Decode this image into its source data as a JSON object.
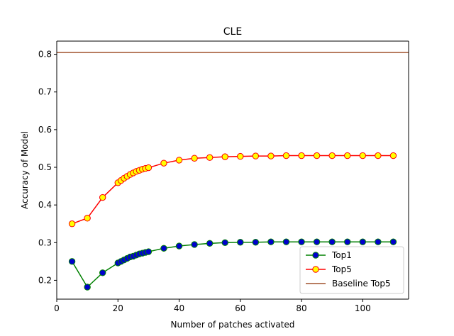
{
  "chart_data": {
    "type": "line",
    "title": "CLE",
    "xlabel": "Number of patches activated",
    "ylabel": "Accuracy of Model",
    "xlim": [
      0,
      115
    ],
    "ylim": [
      0.15,
      0.835
    ],
    "xticks": [
      0,
      20,
      40,
      60,
      80,
      100
    ],
    "yticks": [
      0.2,
      0.3,
      0.4,
      0.5,
      0.6,
      0.7,
      0.8
    ],
    "xtick_labels": [
      "0",
      "20",
      "40",
      "60",
      "80",
      "100"
    ],
    "ytick_labels": [
      "0.2",
      "0.3",
      "0.4",
      "0.5",
      "0.6",
      "0.7",
      "0.8"
    ],
    "grid": false,
    "legend_position": "lower-right",
    "x": [
      5,
      10,
      15,
      20,
      21,
      22,
      23,
      24,
      25,
      26,
      27,
      28,
      29,
      30,
      35,
      40,
      45,
      50,
      55,
      60,
      65,
      70,
      75,
      80,
      85,
      90,
      95,
      100,
      105,
      110
    ],
    "series": [
      {
        "name": "Top1",
        "line_color": "#008000",
        "marker_face": "#0000cc",
        "marker_edge": "#008000",
        "values": [
          0.25,
          0.182,
          0.22,
          0.246,
          0.25,
          0.254,
          0.258,
          0.262,
          0.264,
          0.267,
          0.27,
          0.272,
          0.274,
          0.276,
          0.285,
          0.291,
          0.295,
          0.298,
          0.3,
          0.301,
          0.301,
          0.302,
          0.302,
          0.302,
          0.302,
          0.302,
          0.302,
          0.302,
          0.302,
          0.302
        ]
      },
      {
        "name": "Top5",
        "line_color": "#ff0000",
        "marker_face": "#ffff00",
        "marker_edge": "#ff0000",
        "values": [
          0.35,
          0.365,
          0.42,
          0.459,
          0.465,
          0.471,
          0.476,
          0.481,
          0.485,
          0.489,
          0.492,
          0.495,
          0.497,
          0.499,
          0.511,
          0.519,
          0.524,
          0.526,
          0.528,
          0.529,
          0.53,
          0.53,
          0.531,
          0.531,
          0.531,
          0.531,
          0.531,
          0.531,
          0.531,
          0.531
        ]
      }
    ],
    "baseline": {
      "name": "Baseline Top5",
      "value": 0.805,
      "color": "#a0522d"
    }
  }
}
